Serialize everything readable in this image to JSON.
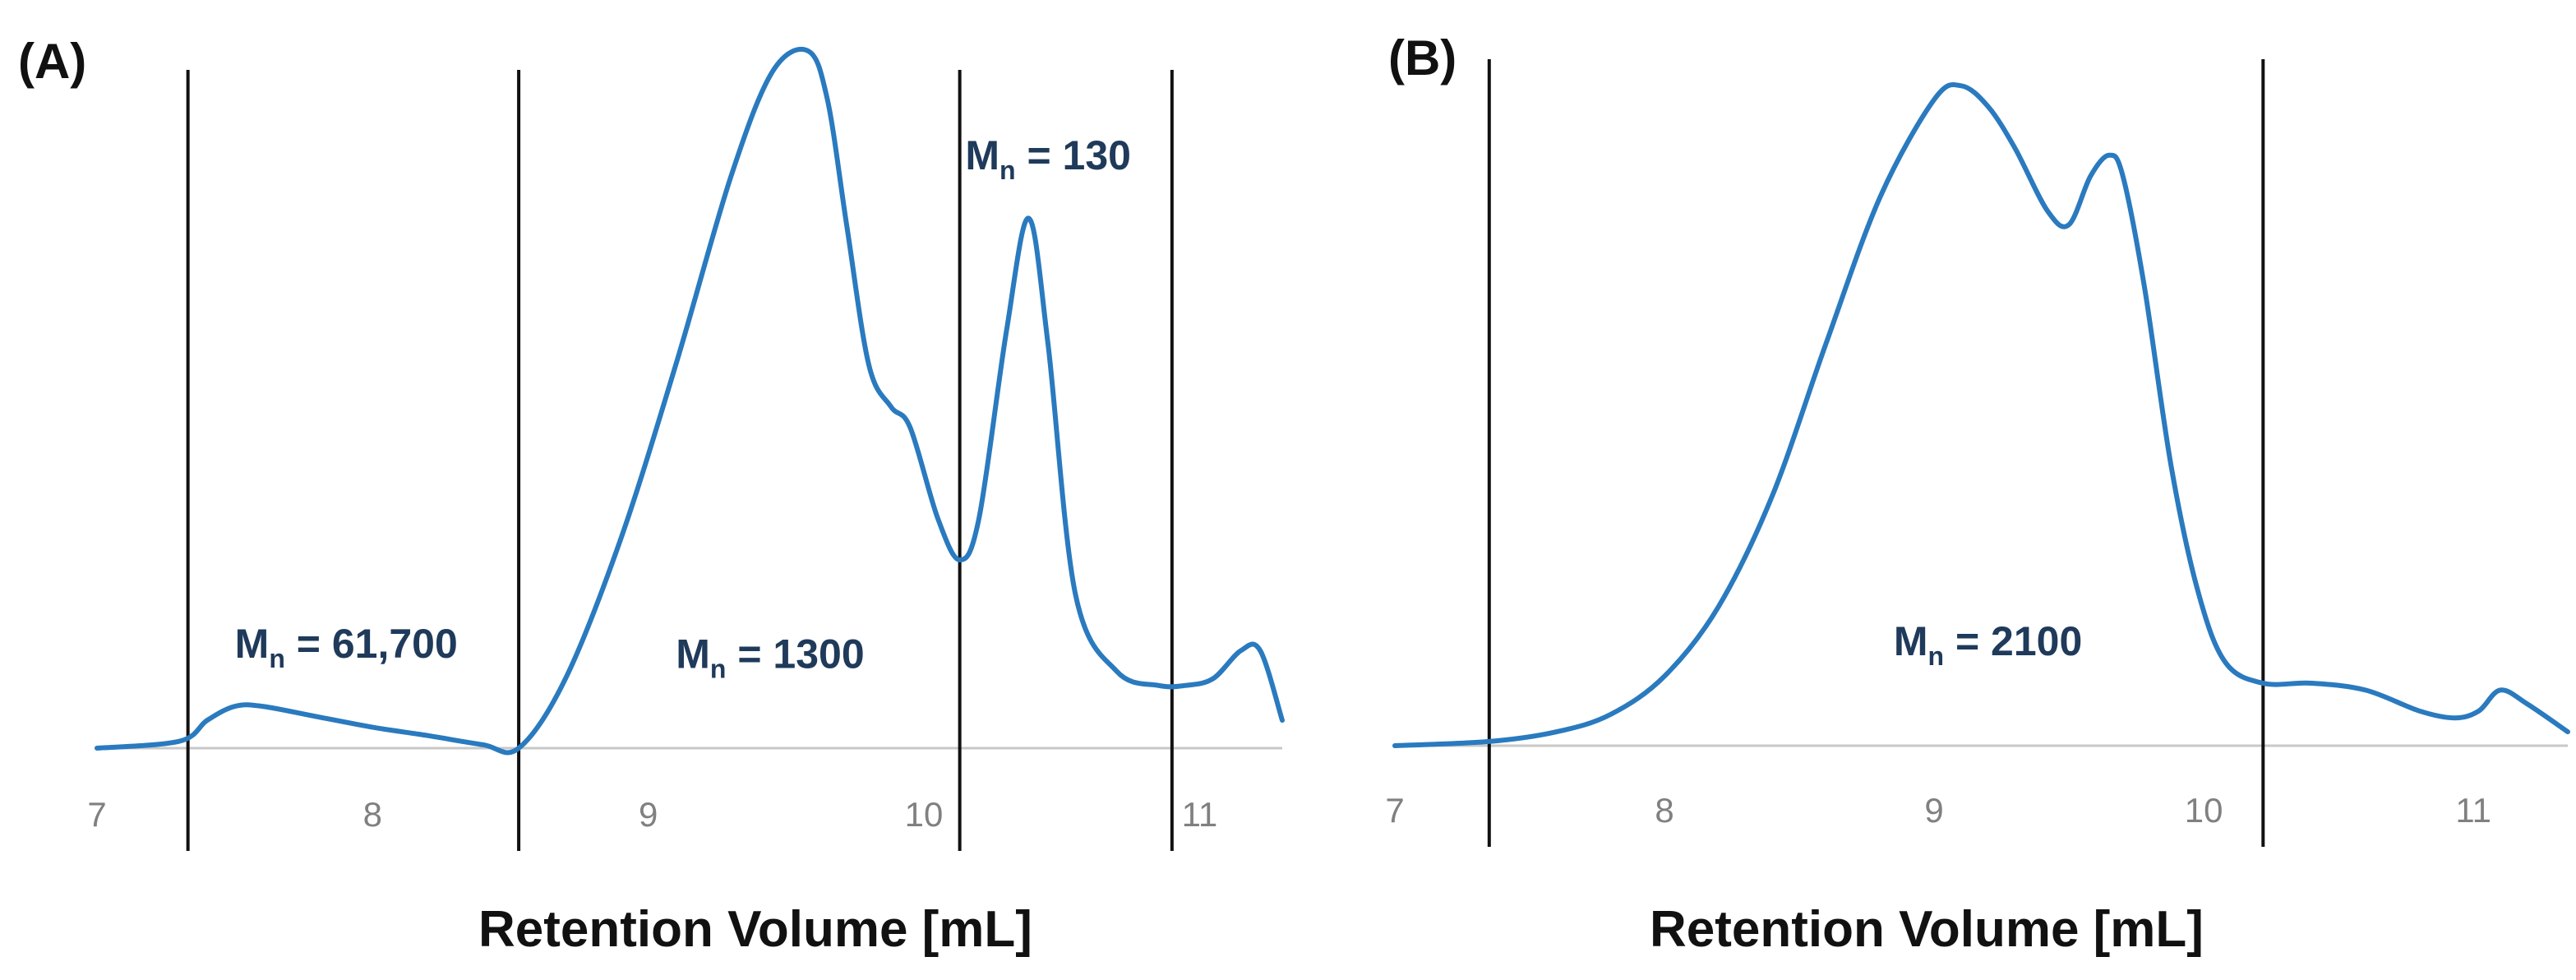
{
  "chart_data": [
    {
      "type": "line",
      "panel_label": "(A)",
      "xlabel": "Retention Volume [mL]",
      "ylabel": "",
      "xlim": [
        7,
        11.3
      ],
      "ylim": [
        0,
        1
      ],
      "grid": false,
      "xticks": [
        "7",
        "8",
        "9",
        "10",
        "11"
      ],
      "line_color": "#2a7abf",
      "axis_color": "#c8c8c8",
      "vlines": [
        7.33,
        8.53,
        10.13,
        10.9
      ],
      "annotations": [
        {
          "base": "M",
          "sub": "n",
          "text": " = 61,700",
          "x": 7.5,
          "y": 0.13
        },
        {
          "base": "M",
          "sub": "n",
          "text": " = 1300",
          "x": 9.1,
          "y": 0.115
        },
        {
          "base": "M",
          "sub": "n",
          "text": " = 130",
          "x": 10.15,
          "y": 0.83
        }
      ],
      "series": [
        {
          "x": [
            7.0,
            7.3,
            7.4,
            7.5,
            7.6,
            7.8,
            8.0,
            8.2,
            8.4,
            8.53,
            8.7,
            8.9,
            9.1,
            9.3,
            9.45,
            9.58,
            9.65,
            9.72,
            9.8,
            9.88,
            9.95,
            10.05,
            10.13,
            10.2,
            10.3,
            10.38,
            10.45,
            10.55,
            10.7,
            10.85,
            10.95,
            11.05,
            11.15,
            11.22,
            11.3
          ],
          "y": [
            0.0,
            0.01,
            0.04,
            0.06,
            0.06,
            0.045,
            0.03,
            0.018,
            0.005,
            0.0,
            0.1,
            0.3,
            0.55,
            0.82,
            0.97,
            1.0,
            0.93,
            0.75,
            0.55,
            0.49,
            0.46,
            0.33,
            0.27,
            0.33,
            0.6,
            0.76,
            0.58,
            0.22,
            0.11,
            0.09,
            0.09,
            0.1,
            0.14,
            0.14,
            0.04
          ]
        }
      ]
    },
    {
      "type": "line",
      "panel_label": "(B)",
      "xlabel": "Retention Volume [mL]",
      "ylabel": "",
      "xlim": [
        7,
        11.35
      ],
      "ylim": [
        0,
        1
      ],
      "grid": false,
      "xticks": [
        "7",
        "8",
        "9",
        "10",
        "11"
      ],
      "line_color": "#2a7abf",
      "axis_color": "#c8c8c8",
      "vlines": [
        7.35,
        10.22
      ],
      "annotations": [
        {
          "base": "M",
          "sub": "n",
          "text": " = 2100",
          "x": 8.85,
          "y": 0.13
        }
      ],
      "series": [
        {
          "x": [
            7.0,
            7.35,
            7.6,
            7.8,
            8.0,
            8.2,
            8.4,
            8.6,
            8.8,
            9.0,
            9.1,
            9.2,
            9.3,
            9.42,
            9.5,
            9.58,
            9.65,
            9.7,
            9.78,
            9.88,
            9.98,
            10.08,
            10.22,
            10.4,
            10.6,
            10.8,
            10.93,
            11.02,
            11.1,
            11.2,
            11.35
          ],
          "y": [
            0.0,
            0.006,
            0.02,
            0.045,
            0.1,
            0.2,
            0.36,
            0.58,
            0.79,
            0.93,
            0.95,
            0.92,
            0.86,
            0.77,
            0.75,
            0.82,
            0.85,
            0.82,
            0.66,
            0.4,
            0.22,
            0.12,
            0.09,
            0.09,
            0.08,
            0.05,
            0.04,
            0.05,
            0.08,
            0.06,
            0.02
          ]
        }
      ]
    }
  ]
}
